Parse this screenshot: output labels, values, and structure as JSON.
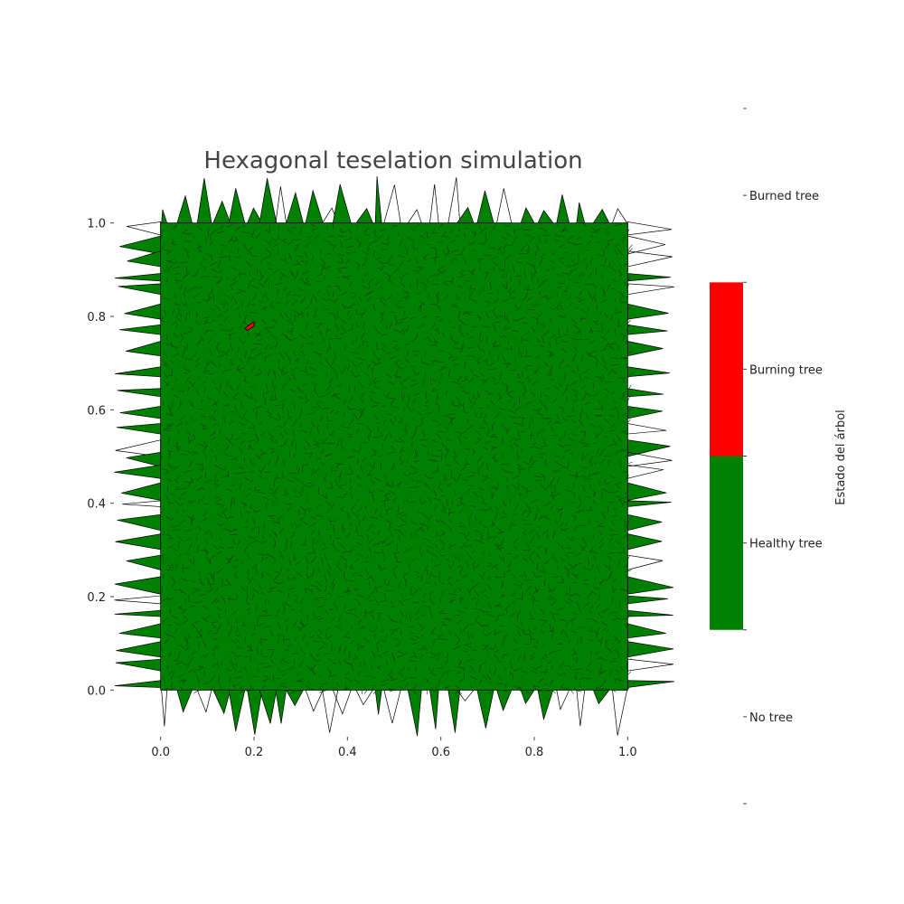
{
  "chart_data": {
    "type": "heatmap",
    "title": "Hexagonal teselation simulation",
    "xlim": [
      -0.1,
      1.1
    ],
    "ylim": [
      -0.1,
      1.1
    ],
    "x_ticks": [
      "0.0",
      "0.2",
      "0.4",
      "0.6",
      "0.8",
      "1.0"
    ],
    "y_ticks": [
      "0.0",
      "0.2",
      "0.4",
      "0.6",
      "0.8",
      "1.0"
    ],
    "grid": false,
    "cells": [
      {
        "state": "Healthy tree",
        "region": [
          [
            0,
            0
          ],
          [
            1,
            1
          ]
        ]
      },
      {
        "state": "Burning tree",
        "x": 0.19,
        "y": 0.78
      }
    ],
    "colorbar": {
      "label": "Estado del árbol",
      "categories": [
        "No tree",
        "Healthy tree",
        "Burning tree",
        "Burned tree"
      ],
      "colors": [
        "#ffffff",
        "#008000",
        "#ff0000",
        "#ffffff"
      ]
    }
  }
}
